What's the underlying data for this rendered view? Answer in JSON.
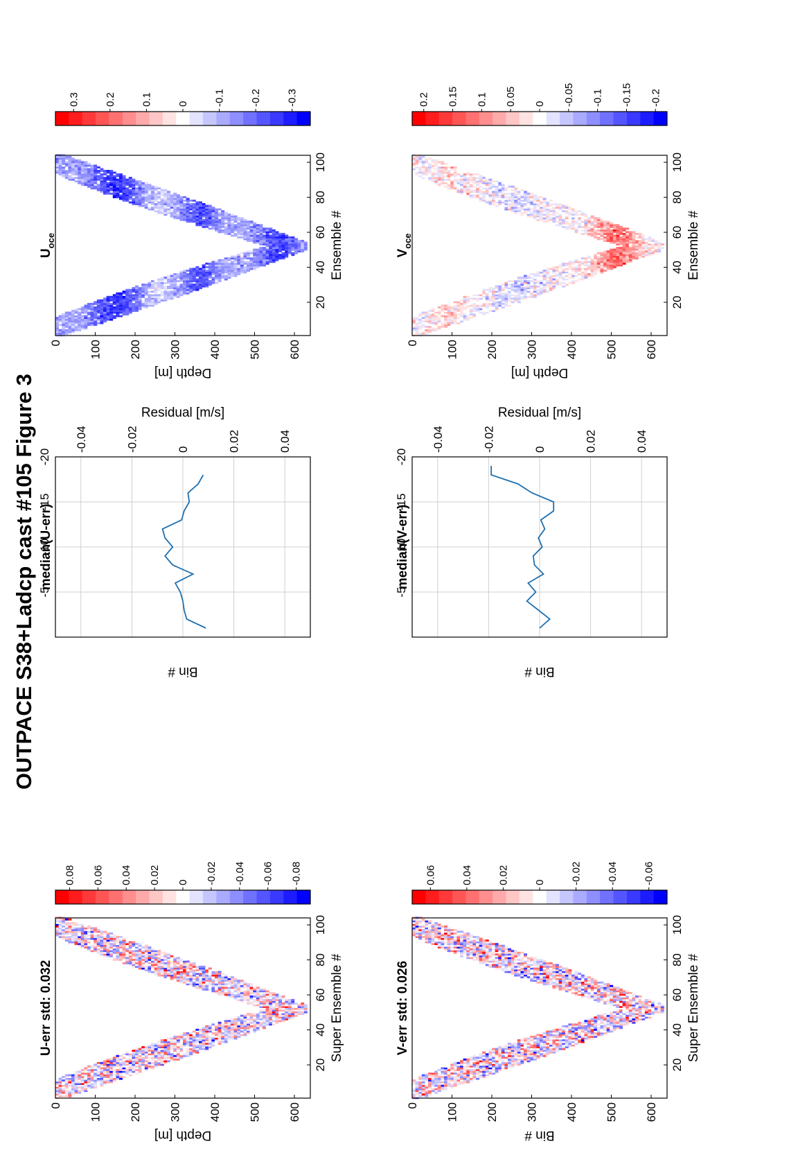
{
  "figure_title": "OUTPACE S38+Ladcp cast #105  Figure 3",
  "chart_data": [
    {
      "id": "u-err",
      "type": "heatmap",
      "title": "U-err std: 0.032",
      "xlabel": "Super Ensemble #",
      "ylabel": "Depth [m]",
      "xlim": [
        1,
        104
      ],
      "ylim": [
        0,
        640
      ],
      "xticks": [
        20,
        40,
        60,
        80,
        100
      ],
      "yticks": [
        0,
        100,
        200,
        300,
        400,
        500,
        600
      ],
      "shape": "V-shaped band: depth increases from ~0 m at ensemble 1 to ~630 m at ensemble 52, then decreases to ~0 m at ensemble 104; values scattered noise",
      "colorbar": {
        "ticks": [
          0.08,
          0.06,
          0.04,
          0.02,
          0,
          -0.02,
          -0.04,
          -0.06,
          -0.08
        ],
        "max": 0.09,
        "min": -0.09
      }
    },
    {
      "id": "median-u-err",
      "type": "line",
      "title": "median(U-err)",
      "xlabel": "Residual [m/s]",
      "ylabel": "Bin #",
      "xlim": [
        -0.05,
        0.05
      ],
      "ylim": [
        -20,
        0
      ],
      "xticks": [
        -0.04,
        -0.02,
        0,
        0.02,
        0.04
      ],
      "yticks": [
        -5,
        -10,
        -15,
        -20
      ],
      "series": [
        {
          "x": [
            0.009,
            0.0015,
            0.0005,
            0,
            -0.001,
            -0.003,
            0.004,
            -0.004,
            -0.007,
            -0.004,
            -0.007,
            -0.008,
            -0.0005,
            0.0005,
            0.0025,
            0.002,
            0.006,
            0.008
          ],
          "y": [
            -1,
            -2,
            -3,
            -4,
            -5,
            -6,
            -7,
            -8,
            -9,
            -10,
            -11,
            -12,
            -13,
            -14,
            -15,
            -16,
            -17,
            -18
          ]
        }
      ]
    },
    {
      "id": "u-oce",
      "type": "heatmap",
      "title": "U",
      "title_sub": "oce",
      "xlabel": "Ensemble #",
      "ylabel": "Depth [m]",
      "xlim": [
        1,
        104
      ],
      "ylim": [
        0,
        640
      ],
      "xticks": [
        20,
        40,
        60,
        80,
        100
      ],
      "yticks": [
        0,
        100,
        200,
        300,
        400,
        500,
        600
      ],
      "shape": "V-shaped band; mostly negative (blue) velocities, strongest near 150 m and 550-620 m",
      "colorbar": {
        "ticks": [
          0.3,
          0.2,
          0.1,
          0,
          -0.1,
          -0.2,
          -0.3
        ],
        "max": 0.35,
        "min": -0.35
      }
    },
    {
      "id": "v-err",
      "type": "heatmap",
      "title": "V-err std: 0.026",
      "xlabel": "Super Ensemble #",
      "ylabel": "Bin #",
      "xlim": [
        1,
        104
      ],
      "ylim": [
        0,
        640
      ],
      "xticks": [
        20,
        40,
        60,
        80,
        100
      ],
      "yticks": [
        0,
        100,
        200,
        300,
        400,
        500,
        600
      ],
      "shape": "V-shaped band of scattered noise",
      "colorbar": {
        "ticks": [
          0.06,
          0.04,
          0.02,
          0,
          -0.02,
          -0.04,
          -0.06
        ],
        "max": 0.07,
        "min": -0.07
      }
    },
    {
      "id": "median-v-err",
      "type": "line",
      "title": "median(V-err)",
      "xlabel": "Residual [m/s]",
      "ylabel": "Bin #",
      "xlim": [
        -0.05,
        0.05
      ],
      "ylim": [
        -20,
        0
      ],
      "xticks": [
        -0.04,
        -0.02,
        0,
        0.02,
        0.04
      ],
      "yticks": [
        -5,
        -10,
        -15,
        -20
      ],
      "series": [
        {
          "x": [
            0,
            0.004,
            -0.0005,
            -0.005,
            -0.0015,
            -0.0045,
            0.0015,
            -0.002,
            -0.0025,
            0.001,
            -0.0005,
            0.002,
            0.0005,
            0.0055,
            0.0055,
            -0.003,
            -0.0085,
            -0.019,
            -0.019
          ],
          "y": [
            -1,
            -2,
            -3,
            -4,
            -5,
            -6,
            -7,
            -8,
            -9,
            -10,
            -11,
            -12,
            -13,
            -14,
            -15,
            -16,
            -17,
            -18,
            -19
          ]
        }
      ]
    },
    {
      "id": "v-oce",
      "type": "heatmap",
      "title": "V",
      "title_sub": "oce",
      "xlabel": "Ensemble #",
      "ylabel": "Depth [m]",
      "xlim": [
        1,
        104
      ],
      "ylim": [
        0,
        640
      ],
      "xticks": [
        20,
        40,
        60,
        80,
        100
      ],
      "yticks": [
        0,
        100,
        200,
        300,
        400,
        500,
        600
      ],
      "shape": "V-shaped band; weak values above 400 m, positive (red) values between 430 m and 600 m",
      "colorbar": {
        "ticks": [
          0.2,
          0.15,
          0.1,
          0.05,
          0,
          -0.05,
          -0.1,
          -0.15,
          -0.2
        ],
        "max": 0.22,
        "min": -0.22
      }
    }
  ]
}
